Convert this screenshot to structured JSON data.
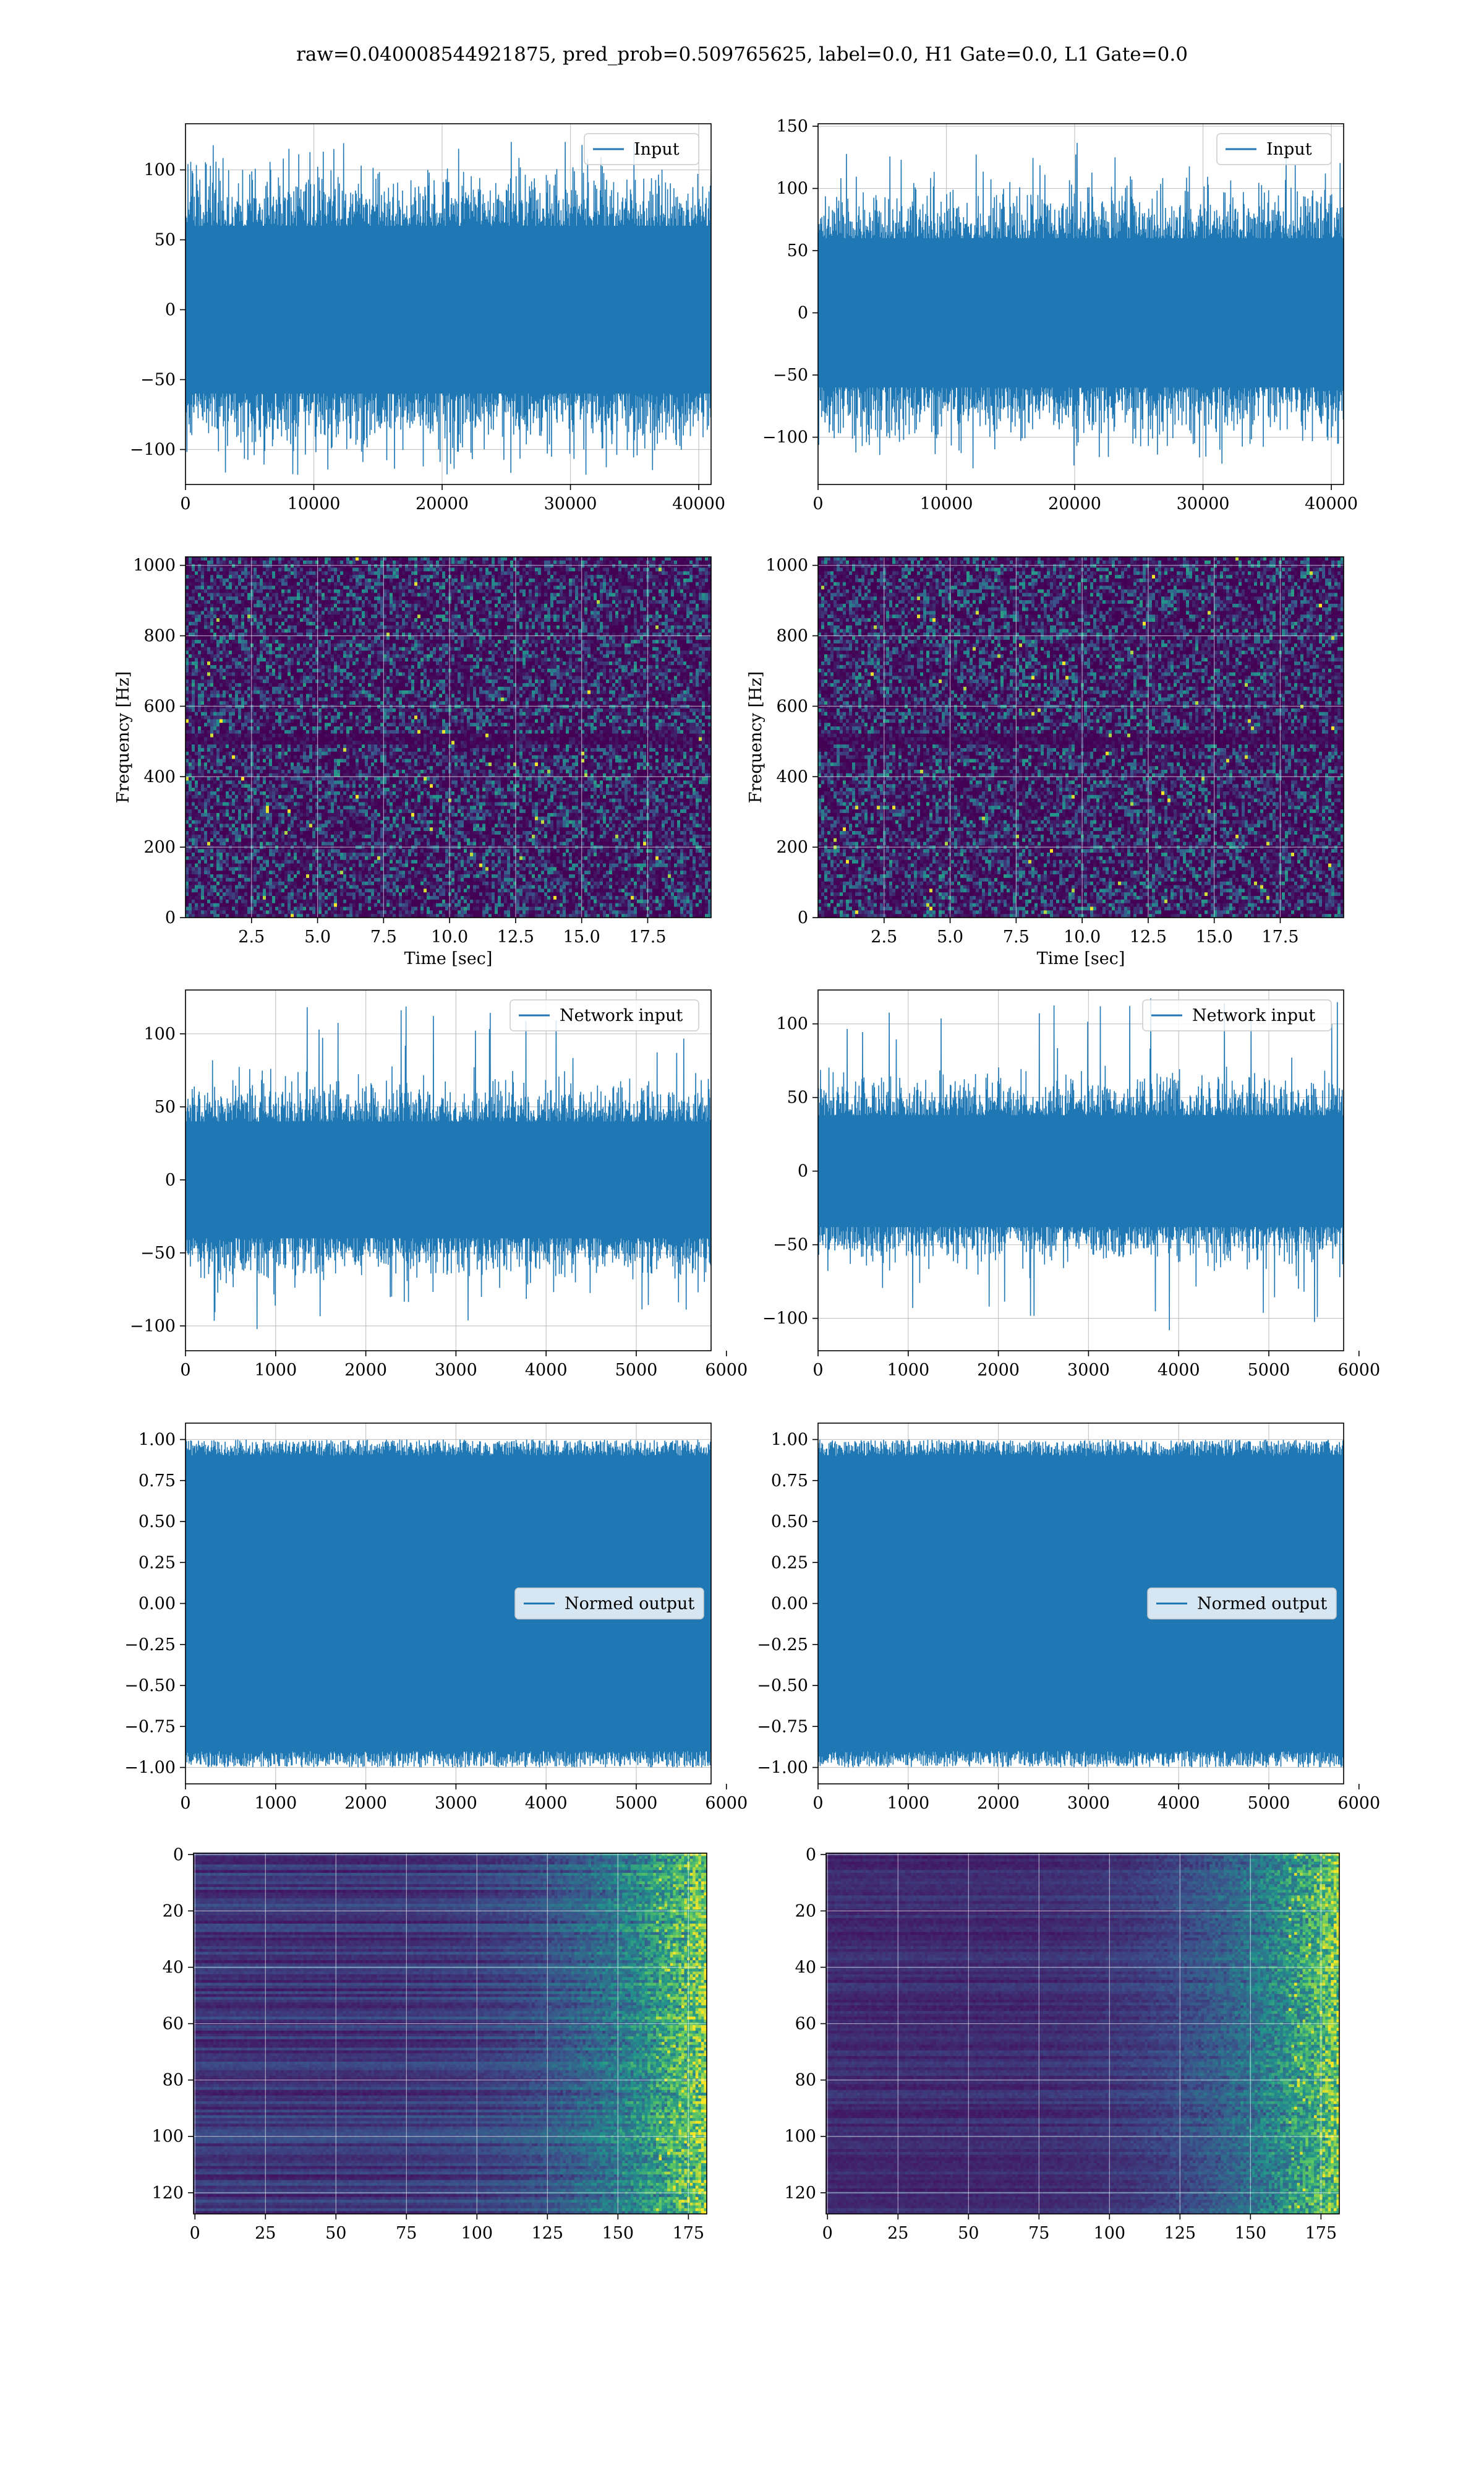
{
  "figure_title": "raw=0.040008544921875, pred_prob=0.509765625, label=0.0, H1 Gate=0.0, L1 Gate=0.0",
  "colors": {
    "line": "#1f77b4",
    "grid": "#b0b0b0",
    "viridis_low": "#440154",
    "viridis_mid": "#21918c",
    "viridis_high": "#fde725"
  },
  "chart_data": [
    {
      "id": "r1c1",
      "type": "line",
      "legend": "Input",
      "legend_position": "upper-right",
      "x_range": [
        0,
        40960
      ],
      "ylim": [
        -125,
        133
      ],
      "xticks": [
        0,
        10000,
        20000,
        30000,
        40000
      ],
      "yticks": [
        -100,
        -50,
        0,
        50,
        100
      ],
      "envelope": {
        "core_half_width": 60,
        "spike_max": 120,
        "spike_min": -118
      },
      "grid": true
    },
    {
      "id": "r1c2",
      "type": "line",
      "legend": "Input",
      "legend_position": "upper-right",
      "x_range": [
        0,
        40960
      ],
      "ylim": [
        -138,
        152
      ],
      "xticks": [
        0,
        10000,
        20000,
        30000,
        40000
      ],
      "yticks": [
        -100,
        -50,
        0,
        50,
        100,
        150
      ],
      "envelope": {
        "core_half_width": 60,
        "spike_max": 140,
        "spike_min": -125
      },
      "grid": true
    },
    {
      "id": "r2c1",
      "type": "heatmap",
      "xlabel": "Time [sec]",
      "ylabel": "Frequency [Hz]",
      "x_range": [
        0,
        19.9
      ],
      "ylim": [
        0,
        1024
      ],
      "xticks": [
        2.5,
        5.0,
        7.5,
        10.0,
        12.5,
        15.0,
        17.5
      ],
      "yticks": [
        0,
        200,
        400,
        600,
        800,
        1000
      ],
      "colormap": "viridis",
      "grid": true
    },
    {
      "id": "r2c2",
      "type": "heatmap",
      "xlabel": "Time [sec]",
      "ylabel": "Frequency [Hz]",
      "x_range": [
        0,
        19.9
      ],
      "ylim": [
        0,
        1024
      ],
      "xticks": [
        2.5,
        5.0,
        7.5,
        10.0,
        12.5,
        15.0,
        17.5
      ],
      "yticks": [
        0,
        200,
        400,
        600,
        800,
        1000
      ],
      "colormap": "viridis",
      "grid": true
    },
    {
      "id": "r3c1",
      "type": "line",
      "legend": "Network input",
      "legend_position": "upper-right",
      "x_range": [
        0,
        5830
      ],
      "ylim": [
        -117,
        130
      ],
      "xticks": [
        0,
        1000,
        2000,
        3000,
        4000,
        5000,
        6000
      ],
      "yticks": [
        -100,
        -50,
        0,
        50,
        100
      ],
      "envelope": {
        "core_half_width": 40,
        "spike_max": 120,
        "spike_min": -105
      },
      "grid": true
    },
    {
      "id": "r3c2",
      "type": "line",
      "legend": "Network input",
      "legend_position": "upper-right",
      "x_range": [
        0,
        5830
      ],
      "ylim": [
        -122,
        123
      ],
      "xticks": [
        0,
        1000,
        2000,
        3000,
        4000,
        5000,
        6000
      ],
      "yticks": [
        -100,
        -50,
        0,
        50,
        100
      ],
      "envelope": {
        "core_half_width": 38,
        "spike_max": 118,
        "spike_min": -112
      },
      "grid": true
    },
    {
      "id": "r4c1",
      "type": "line",
      "legend": "Normed output",
      "legend_position": "center-right",
      "x_range": [
        0,
        5830
      ],
      "ylim": [
        -1.1,
        1.1
      ],
      "xticks": [
        0,
        1000,
        2000,
        3000,
        4000,
        5000,
        6000
      ],
      "yticks": [
        -1.0,
        -0.75,
        -0.5,
        -0.25,
        0.0,
        0.25,
        0.5,
        0.75,
        1.0
      ],
      "ytick_labels": [
        "−1.00",
        "−0.75",
        "−0.50",
        "−0.25",
        "0.00",
        "0.25",
        "0.50",
        "0.75",
        "1.00"
      ],
      "envelope": {
        "core_half_width": 0.9,
        "spike_max": 1.0,
        "spike_min": -1.0
      },
      "grid": true
    },
    {
      "id": "r4c2",
      "type": "line",
      "legend": "Normed output",
      "legend_position": "center-right",
      "x_range": [
        0,
        5830
      ],
      "ylim": [
        -1.1,
        1.1
      ],
      "xticks": [
        0,
        1000,
        2000,
        3000,
        4000,
        5000,
        6000
      ],
      "yticks": [
        -1.0,
        -0.75,
        -0.5,
        -0.25,
        0.0,
        0.25,
        0.5,
        0.75,
        1.0
      ],
      "ytick_labels": [
        "−1.00",
        "−0.75",
        "−0.50",
        "−0.25",
        "0.00",
        "0.25",
        "0.50",
        "0.75",
        "1.00"
      ],
      "envelope": {
        "core_half_width": 0.9,
        "spike_max": 1.0,
        "spike_min": -1.0
      },
      "grid": true
    },
    {
      "id": "r5c1",
      "type": "heatmap",
      "x_range": [
        -0.5,
        181.5
      ],
      "ylim": [
        127.5,
        -0.5
      ],
      "xticks": [
        0,
        25,
        50,
        75,
        100,
        125,
        150,
        175
      ],
      "yticks": [
        0,
        20,
        40,
        60,
        80,
        100,
        120
      ],
      "colormap": "viridis",
      "hot_region": "right",
      "grid": true
    },
    {
      "id": "r5c2",
      "type": "heatmap",
      "x_range": [
        -0.5,
        181.5
      ],
      "ylim": [
        127.5,
        -0.5
      ],
      "xticks": [
        0,
        25,
        50,
        75,
        100,
        125,
        150,
        175
      ],
      "yticks": [
        0,
        20,
        40,
        60,
        80,
        100,
        120
      ],
      "colormap": "viridis",
      "hot_region": "right",
      "grid": true
    }
  ]
}
